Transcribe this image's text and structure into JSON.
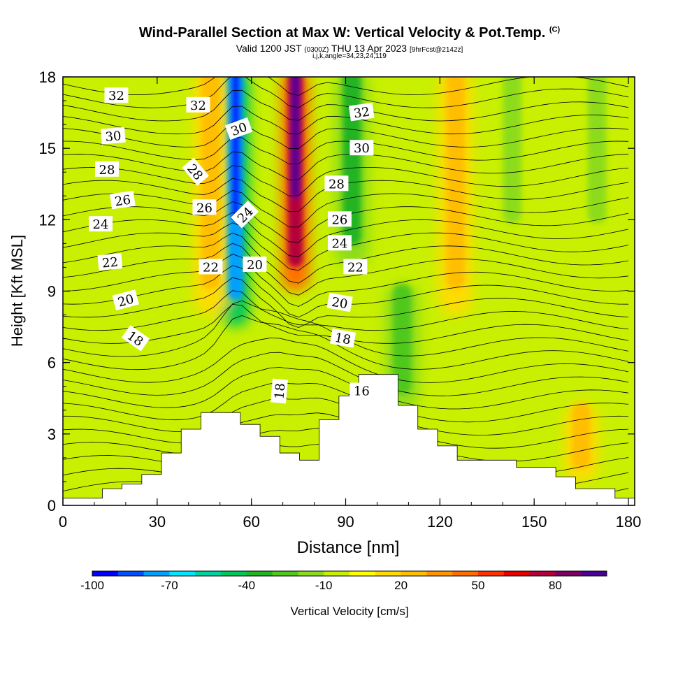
{
  "title": {
    "main": "Wind-Parallel Section at Max W: Vertical Velocity & Pot.Temp.",
    "copyright": "(C)",
    "valid_prefix": "Valid 1200 JST",
    "utc": "(0300Z)",
    "valid_date": "THU 13 Apr 2023",
    "forecast": "[9hrFcst@2142z]",
    "indices": "i,j,k,angle=34,23,24,119"
  },
  "chart_data": {
    "type": "heatmap",
    "xlabel": "Distance [nm]",
    "ylabel": "Height [Kft MSL]",
    "xlim": [
      0,
      182
    ],
    "ylim": [
      0,
      18
    ],
    "x_ticks": [
      "0",
      "30",
      "60",
      "90",
      "120",
      "150",
      "180"
    ],
    "y_ticks": [
      "0",
      "3",
      "6",
      "9",
      "12",
      "15",
      "18"
    ],
    "colorbar": {
      "label": "Vertical Velocity [cm/s]",
      "tick_labels": [
        "-100",
        "-70",
        "-40",
        "-10",
        "20",
        "50",
        "80"
      ],
      "tick_values": [
        -100,
        -70,
        -40,
        -10,
        20,
        50,
        80
      ],
      "min": -100,
      "max": 100,
      "colors": [
        "#0000ff",
        "#0050ff",
        "#00a0ff",
        "#00e6ff",
        "#00d2a0",
        "#00c85a",
        "#22b422",
        "#50c81e",
        "#8cdc1e",
        "#c8f000",
        "#ffff00",
        "#ffdc00",
        "#ffbe00",
        "#ff9600",
        "#ff6e00",
        "#ff3200",
        "#e60000",
        "#b4003c",
        "#7d0064",
        "#4b0096"
      ]
    },
    "vertical_velocity_features": [
      {
        "x": 55,
        "z_range": [
          7.5,
          18
        ],
        "w": -100
      },
      {
        "x": 47,
        "z_range": [
          8,
          18
        ],
        "w": 30
      },
      {
        "x": 74,
        "z_range": [
          9,
          18
        ],
        "w": 90
      },
      {
        "x": 92,
        "z_range": [
          10,
          18
        ],
        "w": -40
      },
      {
        "x": 108,
        "z_range": [
          4,
          9
        ],
        "w": -35
      },
      {
        "x": 125,
        "z_range": [
          8,
          18
        ],
        "w": 25
      },
      {
        "x": 143,
        "z_range": [
          11,
          18
        ],
        "w": -20
      },
      {
        "x": 165,
        "z_range": [
          1,
          4
        ],
        "w": 30
      },
      {
        "x": 170,
        "z_range": [
          11,
          18
        ],
        "w": -20
      }
    ],
    "potential_temperature_contours": {
      "levels": [
        16,
        18,
        20,
        22,
        24,
        26,
        28,
        30,
        32
      ],
      "labels": [
        "32",
        "30",
        "28",
        "26",
        "24",
        "22",
        "20",
        "18",
        "32",
        "28",
        "26",
        "30",
        "24",
        "22",
        "20",
        "32",
        "30",
        "28",
        "26",
        "24",
        "22",
        "20",
        "18",
        "18",
        "16"
      ]
    },
    "terrain_heights_kft": [
      0.3,
      0.3,
      0.7,
      0.9,
      1.3,
      2.2,
      3.2,
      3.9,
      3.9,
      3.4,
      2.9,
      2.2,
      1.9,
      3.6,
      4.6,
      5.5,
      5.5,
      4.2,
      3.2,
      2.5,
      1.9,
      1.9,
      1.9,
      1.6,
      1.6,
      1.2,
      0.7,
      0.7,
      0.3
    ]
  }
}
